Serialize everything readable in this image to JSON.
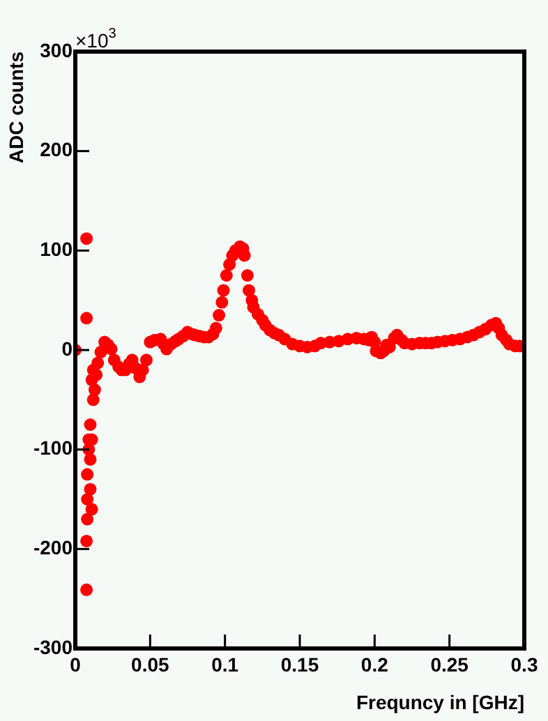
{
  "chart_data": {
    "type": "scatter",
    "xlabel": "Frequncy in [GHz]",
    "ylabel": "ADC counts",
    "annotations": [
      "×10$^{3}$"
    ],
    "xlim": [
      0,
      0.3
    ],
    "ylim": [
      -300,
      300
    ],
    "xticks": [
      0,
      0.05,
      0.1,
      0.15,
      0.2,
      0.25,
      0.3
    ],
    "yticks": [
      -300,
      -200,
      -100,
      0,
      100,
      200,
      300
    ],
    "grid": false,
    "legend": false,
    "marker": "circle",
    "series": [
      {
        "color": "#ff0000",
        "x": [
          0,
          0.0075,
          0.0075,
          0.0075,
          0.0075,
          0.008,
          0.008,
          0.008,
          0.009,
          0.009,
          0.01,
          0.01,
          0.01,
          0.011,
          0.011,
          0.011,
          0.012,
          0.012,
          0.013,
          0.014,
          0.015,
          0.017,
          0.0196,
          0.022,
          0.024,
          0.026,
          0.029,
          0.031,
          0.0335,
          0.036,
          0.038,
          0.04,
          0.043,
          0.045,
          0.0475,
          0.05,
          0.053,
          0.057,
          0.059,
          0.061,
          0.064,
          0.067,
          0.069,
          0.072,
          0.075,
          0.078,
          0.08,
          0.083,
          0.086,
          0.089,
          0.092,
          0.094,
          0.096,
          0.098,
          0.099,
          0.101,
          0.103,
          0.105,
          0.107,
          0.11,
          0.112,
          0.113,
          0.115,
          0.116,
          0.118,
          0.119,
          0.122,
          0.125,
          0.127,
          0.13,
          0.133,
          0.136,
          0.14,
          0.145,
          0.15,
          0.155,
          0.16,
          0.164,
          0.17,
          0.176,
          0.182,
          0.188,
          0.193,
          0.196,
          0.198,
          0.2,
          0.201,
          0.204,
          0.206,
          0.208,
          0.21,
          0.213,
          0.215,
          0.218,
          0.22,
          0.225,
          0.23,
          0.234,
          0.238,
          0.242,
          0.247,
          0.252,
          0.257,
          0.262,
          0.266,
          0.27,
          0.274,
          0.278,
          0.281,
          0.283,
          0.285,
          0.288,
          0.29,
          0.294,
          0.297
        ],
        "values": [
          0,
          112,
          32,
          -241,
          -192,
          -170,
          -150,
          -125,
          -100,
          -90,
          -75,
          -140,
          -110,
          -160,
          -90,
          -30,
          -50,
          -20,
          -40,
          -25,
          -13,
          -2,
          8,
          5,
          1,
          -10,
          -17,
          -20,
          -20,
          -14,
          -10,
          -18,
          -27,
          -20,
          -10,
          8,
          10,
          11,
          6,
          1,
          6,
          9,
          11,
          14,
          18,
          16,
          15,
          14,
          13,
          13,
          16,
          22,
          35,
          48,
          60,
          75,
          86,
          95,
          100,
          104,
          102,
          95,
          75,
          60,
          50,
          43,
          36,
          30,
          25,
          20,
          17,
          15,
          11,
          6,
          4,
          3,
          4,
          7,
          8,
          9,
          11,
          12,
          11,
          10,
          13,
          8,
          -1,
          -3,
          -1,
          5,
          3,
          12,
          15,
          10,
          7,
          6,
          7,
          7,
          7,
          8,
          9,
          10,
          11,
          13,
          15,
          18,
          21,
          25,
          27,
          22,
          15,
          10,
          6,
          4,
          4
        ]
      }
    ]
  }
}
